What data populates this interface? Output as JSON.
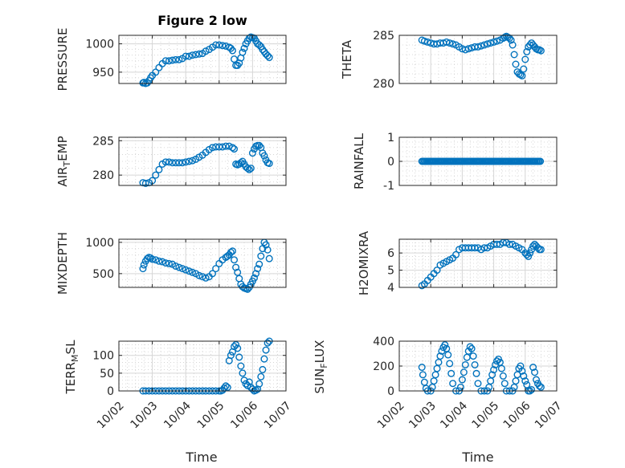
{
  "figure_title": "Figure 2 low",
  "colors": {
    "marker": "#0072BD",
    "axes": "#262626",
    "grid": "#d6d6d6"
  },
  "x_tick_labels": [
    "10/02",
    "10/03",
    "10/04",
    "10/05",
    "10/06",
    "10/07"
  ],
  "x_axis_label": "Time",
  "chart_data": [
    {
      "type": "scatter",
      "ylabel": "PRESSURE",
      "title": "Figure 2 low",
      "xlim": [
        "10/02",
        "10/07"
      ],
      "ylim": [
        930,
        1015
      ],
      "yticks": [
        950,
        1000
      ],
      "grid": "on",
      "x": [
        2.72,
        2.75,
        2.8,
        2.85,
        2.9,
        2.95,
        3.0,
        3.1,
        3.2,
        3.3,
        3.4,
        3.5,
        3.6,
        3.7,
        3.8,
        3.9,
        4.0,
        4.1,
        4.2,
        4.3,
        4.4,
        4.5,
        4.6,
        4.7,
        4.8,
        4.9,
        5.0,
        5.1,
        5.2,
        5.3,
        5.35,
        5.4,
        5.45,
        5.5,
        5.55,
        5.6,
        5.65,
        5.7,
        5.75,
        5.8,
        5.85,
        5.9,
        5.95,
        6.0,
        6.05,
        6.1,
        6.15,
        6.2,
        6.25,
        6.3,
        6.35,
        6.4,
        6.45,
        6.5
      ],
      "values": [
        931,
        932,
        930,
        931,
        935,
        940,
        944,
        950,
        958,
        965,
        970,
        970,
        971,
        972,
        972,
        974,
        978,
        978,
        980,
        981,
        982,
        983,
        987,
        990,
        994,
        998,
        998,
        997,
        996,
        994,
        992,
        988,
        973,
        962,
        962,
        966,
        975,
        985,
        992,
        1000,
        1005,
        1010,
        1012,
        1011,
        1010,
        1005,
        1000,
        998,
        995,
        990,
        986,
        982,
        979,
        976
      ]
    },
    {
      "type": "scatter",
      "ylabel": "THETA",
      "title": "",
      "xlim": [
        "10/02",
        "10/07"
      ],
      "ylim": [
        280,
        285
      ],
      "yticks": [
        280,
        285
      ],
      "grid": "on",
      "x": [
        2.72,
        2.8,
        2.9,
        3.0,
        3.1,
        3.2,
        3.3,
        3.4,
        3.5,
        3.6,
        3.7,
        3.8,
        3.9,
        4.0,
        4.1,
        4.2,
        4.3,
        4.4,
        4.5,
        4.6,
        4.7,
        4.8,
        4.9,
        5.0,
        5.1,
        5.2,
        5.3,
        5.35,
        5.4,
        5.45,
        5.5,
        5.55,
        5.6,
        5.65,
        5.7,
        5.75,
        5.8,
        5.85,
        5.9,
        5.95,
        6.0,
        6.05,
        6.1,
        6.15,
        6.2,
        6.25,
        6.3,
        6.35,
        6.4,
        6.45,
        6.5
      ],
      "values": [
        284.5,
        284.4,
        284.3,
        284.2,
        284.1,
        284.1,
        284.2,
        284.2,
        284.3,
        284.2,
        284.1,
        284.0,
        283.8,
        283.6,
        283.5,
        283.6,
        283.7,
        283.8,
        283.8,
        283.9,
        284.0,
        284.1,
        284.2,
        284.3,
        284.4,
        284.5,
        284.7,
        284.8,
        284.9,
        284.8,
        284.7,
        284.5,
        284.0,
        283.0,
        282.0,
        281.2,
        281.0,
        280.9,
        280.8,
        281.5,
        282.5,
        283.3,
        283.8,
        284.0,
        284.2,
        284.0,
        283.8,
        283.6,
        283.5,
        283.5,
        283.4
      ]
    },
    {
      "type": "scatter",
      "ylabel": "AIR_TEMP",
      "title": "",
      "xlim": [
        "10/02",
        "10/07"
      ],
      "ylim": [
        278.5,
        285.5
      ],
      "yticks": [
        280,
        285
      ],
      "grid": "on",
      "x": [
        2.72,
        2.8,
        2.9,
        3.0,
        3.1,
        3.2,
        3.3,
        3.4,
        3.5,
        3.6,
        3.7,
        3.8,
        3.9,
        4.0,
        4.1,
        4.2,
        4.3,
        4.4,
        4.5,
        4.6,
        4.7,
        4.8,
        4.9,
        5.0,
        5.1,
        5.2,
        5.3,
        5.4,
        5.45,
        5.5,
        5.55,
        5.6,
        5.65,
        5.7,
        5.75,
        5.8,
        5.85,
        5.9,
        5.95,
        6.0,
        6.05,
        6.1,
        6.15,
        6.2,
        6.25,
        6.3,
        6.35,
        6.4,
        6.45,
        6.5
      ],
      "values": [
        278.9,
        278.8,
        278.9,
        279.2,
        280.0,
        280.8,
        281.6,
        281.9,
        281.9,
        281.8,
        281.8,
        281.8,
        281.8,
        281.9,
        282.0,
        282.1,
        282.3,
        282.6,
        282.9,
        283.3,
        283.7,
        284.0,
        284.1,
        284.1,
        284.1,
        284.2,
        284.2,
        284.0,
        283.8,
        281.6,
        281.5,
        281.6,
        281.8,
        282.0,
        281.6,
        281.2,
        281.0,
        280.8,
        281.0,
        283.2,
        283.8,
        284.2,
        284.3,
        284.3,
        284.0,
        283.2,
        282.8,
        282.2,
        281.8,
        281.7
      ]
    },
    {
      "type": "scatter",
      "ylabel": "RAINFALL",
      "title": "",
      "xlim": [
        "10/02",
        "10/07"
      ],
      "ylim": [
        -1,
        1
      ],
      "yticks": [
        -1,
        0,
        1
      ],
      "grid": "on",
      "x_start": 2.72,
      "x_end": 6.5,
      "x_step": 0.04,
      "constant_value": 0
    },
    {
      "type": "scatter",
      "ylabel": "MIXDEPTH",
      "title": "",
      "xlim": [
        "10/02",
        "10/07"
      ],
      "ylim": [
        280,
        1050
      ],
      "yticks": [
        500,
        1000
      ],
      "grid": "on",
      "x": [
        2.72,
        2.75,
        2.8,
        2.85,
        2.9,
        2.95,
        3.0,
        3.1,
        3.2,
        3.3,
        3.4,
        3.5,
        3.6,
        3.7,
        3.8,
        3.9,
        4.0,
        4.1,
        4.2,
        4.3,
        4.4,
        4.5,
        4.6,
        4.7,
        4.8,
        4.9,
        5.0,
        5.1,
        5.2,
        5.25,
        5.3,
        5.35,
        5.4,
        5.45,
        5.5,
        5.55,
        5.6,
        5.65,
        5.7,
        5.75,
        5.8,
        5.85,
        5.9,
        5.95,
        6.0,
        6.05,
        6.1,
        6.15,
        6.2,
        6.25,
        6.3,
        6.35,
        6.4,
        6.45,
        6.5
      ],
      "values": [
        580,
        640,
        700,
        740,
        760,
        750,
        730,
        720,
        700,
        690,
        670,
        660,
        650,
        620,
        600,
        580,
        560,
        540,
        520,
        500,
        470,
        450,
        430,
        450,
        500,
        580,
        660,
        720,
        760,
        780,
        800,
        840,
        860,
        720,
        600,
        520,
        420,
        330,
        290,
        270,
        260,
        250,
        280,
        330,
        380,
        430,
        500,
        580,
        650,
        780,
        900,
        1000,
        960,
        880,
        740
      ]
    },
    {
      "type": "scatter",
      "ylabel": "H2OMIXRA",
      "title": "",
      "xlim": [
        "10/02",
        "10/07"
      ],
      "ylim": [
        4,
        6.8
      ],
      "yticks": [
        4,
        5,
        6
      ],
      "grid": "on",
      "x": [
        2.72,
        2.8,
        2.9,
        3.0,
        3.1,
        3.2,
        3.3,
        3.4,
        3.5,
        3.6,
        3.7,
        3.8,
        3.9,
        4.0,
        4.1,
        4.2,
        4.3,
        4.4,
        4.5,
        4.6,
        4.7,
        4.8,
        4.9,
        5.0,
        5.1,
        5.2,
        5.3,
        5.4,
        5.5,
        5.6,
        5.7,
        5.8,
        5.9,
        6.0,
        6.05,
        6.1,
        6.15,
        6.2,
        6.25,
        6.3,
        6.35,
        6.4,
        6.45,
        6.5
      ],
      "values": [
        4.1,
        4.2,
        4.4,
        4.6,
        4.8,
        5.0,
        5.3,
        5.4,
        5.5,
        5.6,
        5.7,
        5.9,
        6.2,
        6.3,
        6.3,
        6.3,
        6.3,
        6.3,
        6.3,
        6.2,
        6.3,
        6.3,
        6.4,
        6.5,
        6.5,
        6.5,
        6.6,
        6.6,
        6.5,
        6.5,
        6.4,
        6.3,
        6.2,
        6.0,
        5.9,
        5.8,
        6.0,
        6.2,
        6.4,
        6.5,
        6.4,
        6.3,
        6.2,
        6.2
      ]
    },
    {
      "type": "scatter",
      "ylabel": "TERR_MSL",
      "title": "",
      "xlim": [
        "10/02",
        "10/07"
      ],
      "ylim": [
        0,
        140
      ],
      "yticks": [
        0,
        50,
        100
      ],
      "grid": "on",
      "x": [
        2.72,
        2.8,
        2.9,
        3.0,
        3.1,
        3.2,
        3.3,
        3.4,
        3.5,
        3.6,
        3.7,
        3.8,
        3.9,
        4.0,
        4.1,
        4.2,
        4.3,
        4.4,
        4.5,
        4.6,
        4.7,
        4.8,
        4.9,
        5.0,
        5.05,
        5.1,
        5.15,
        5.2,
        5.25,
        5.3,
        5.35,
        5.4,
        5.45,
        5.5,
        5.55,
        5.6,
        5.65,
        5.7,
        5.75,
        5.8,
        5.85,
        5.9,
        5.95,
        6.0,
        6.05,
        6.1,
        6.15,
        6.2,
        6.25,
        6.3,
        6.35,
        6.4,
        6.45,
        6.5
      ],
      "values": [
        0,
        0,
        0,
        0,
        0,
        0,
        0,
        0,
        0,
        0,
        0,
        0,
        0,
        0,
        0,
        0,
        0,
        0,
        0,
        0,
        0,
        0,
        0,
        0,
        0,
        2,
        8,
        14,
        10,
        85,
        100,
        110,
        125,
        130,
        120,
        95,
        70,
        50,
        30,
        20,
        15,
        25,
        10,
        5,
        0,
        2,
        5,
        20,
        40,
        60,
        90,
        115,
        135,
        140
      ]
    },
    {
      "type": "scatter",
      "ylabel": "SUN_FLUX",
      "title": "",
      "xlim": [
        "10/02",
        "10/07"
      ],
      "ylim": [
        0,
        400
      ],
      "yticks": [
        0,
        200,
        400
      ],
      "grid": "on",
      "x": [
        2.72,
        2.75,
        2.8,
        2.85,
        2.9,
        3.0,
        3.05,
        3.1,
        3.15,
        3.2,
        3.25,
        3.3,
        3.35,
        3.4,
        3.45,
        3.5,
        3.55,
        3.6,
        3.65,
        3.7,
        3.8,
        3.9,
        3.95,
        4.0,
        4.05,
        4.1,
        4.15,
        4.2,
        4.25,
        4.3,
        4.35,
        4.4,
        4.45,
        4.5,
        4.6,
        4.7,
        4.8,
        4.85,
        4.9,
        4.95,
        5.0,
        5.05,
        5.1,
        5.15,
        5.2,
        5.25,
        5.3,
        5.35,
        5.4,
        5.5,
        5.6,
        5.65,
        5.7,
        5.75,
        5.8,
        5.85,
        5.9,
        5.95,
        6.0,
        6.05,
        6.1,
        6.15,
        6.2,
        6.25,
        6.3,
        6.35,
        6.4,
        6.45,
        6.5
      ],
      "values": [
        190,
        130,
        70,
        20,
        0,
        0,
        30,
        80,
        130,
        180,
        230,
        280,
        320,
        350,
        370,
        340,
        290,
        220,
        140,
        60,
        0,
        0,
        30,
        90,
        150,
        210,
        270,
        320,
        355,
        340,
        280,
        210,
        140,
        60,
        0,
        0,
        0,
        30,
        80,
        130,
        170,
        210,
        240,
        255,
        230,
        180,
        120,
        60,
        0,
        0,
        0,
        30,
        80,
        130,
        180,
        200,
        160,
        120,
        80,
        50,
        0,
        0,
        10,
        190,
        150,
        90,
        60,
        40,
        30
      ]
    }
  ]
}
